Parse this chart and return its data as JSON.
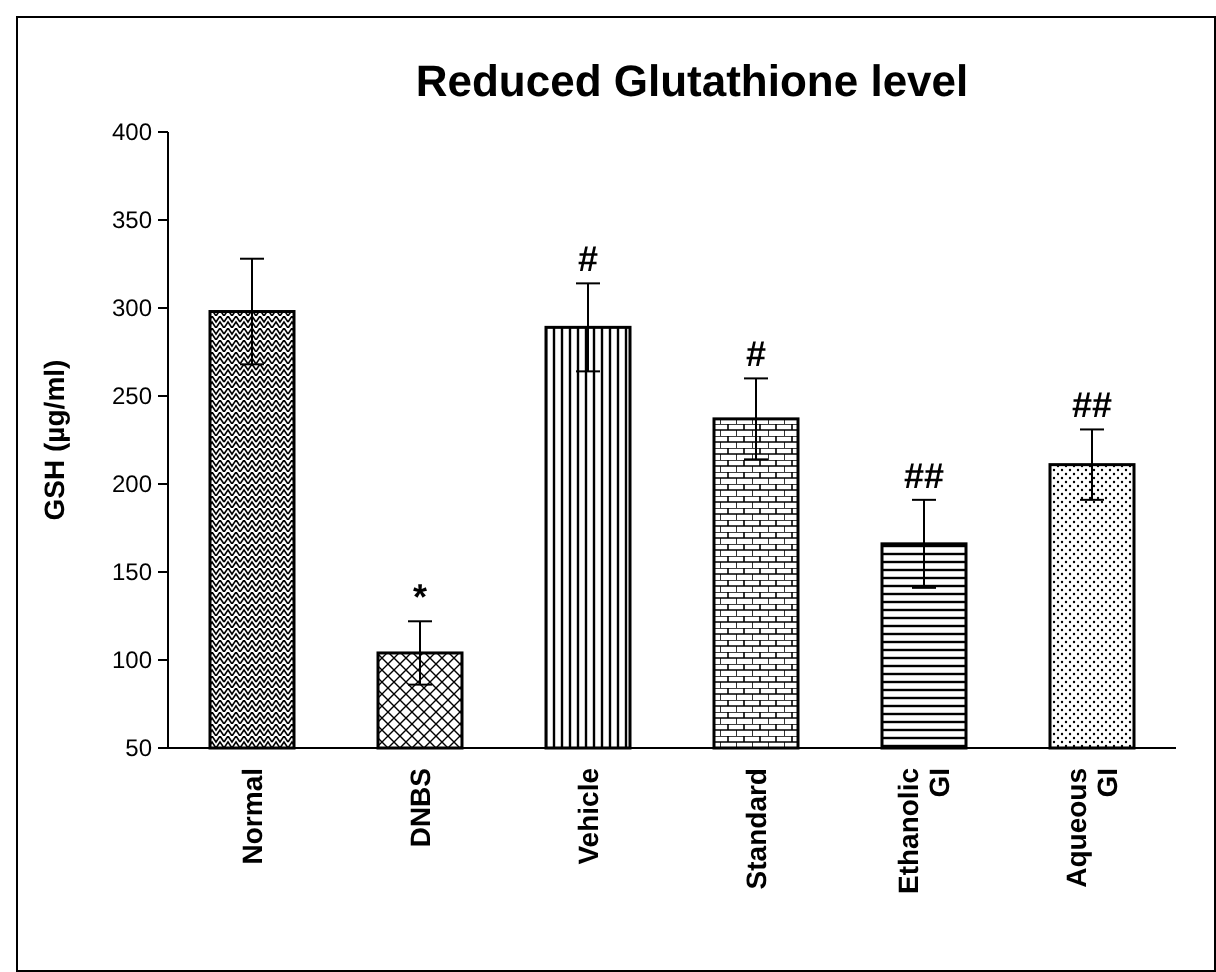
{
  "chart_data": {
    "type": "bar",
    "title": "Reduced Glutathione level",
    "ylabel": "GSH (µg/ml)",
    "categories": [
      "Normal",
      "DNBS",
      "Vehicle",
      "Standard",
      "Ethanolic GI",
      "Aqueous GI"
    ],
    "values": [
      298,
      104,
      289,
      237,
      166,
      211
    ],
    "errors": [
      30,
      18,
      25,
      23,
      25,
      20
    ],
    "ylim": [
      50,
      400
    ],
    "yticks": [
      50,
      100,
      150,
      200,
      250,
      300,
      350,
      400
    ],
    "grid": false,
    "annotations": [
      {
        "text": "*",
        "x": "DNBS",
        "y": 122
      },
      {
        "text": "#",
        "x": "Vehicle",
        "y": 314
      },
      {
        "text": "#",
        "x": "Standard",
        "y": 260
      },
      {
        "text": "##",
        "x": "Ethanolic GI",
        "y": 191
      },
      {
        "text": "##",
        "x": "Aqueous GI",
        "y": 231
      }
    ]
  }
}
